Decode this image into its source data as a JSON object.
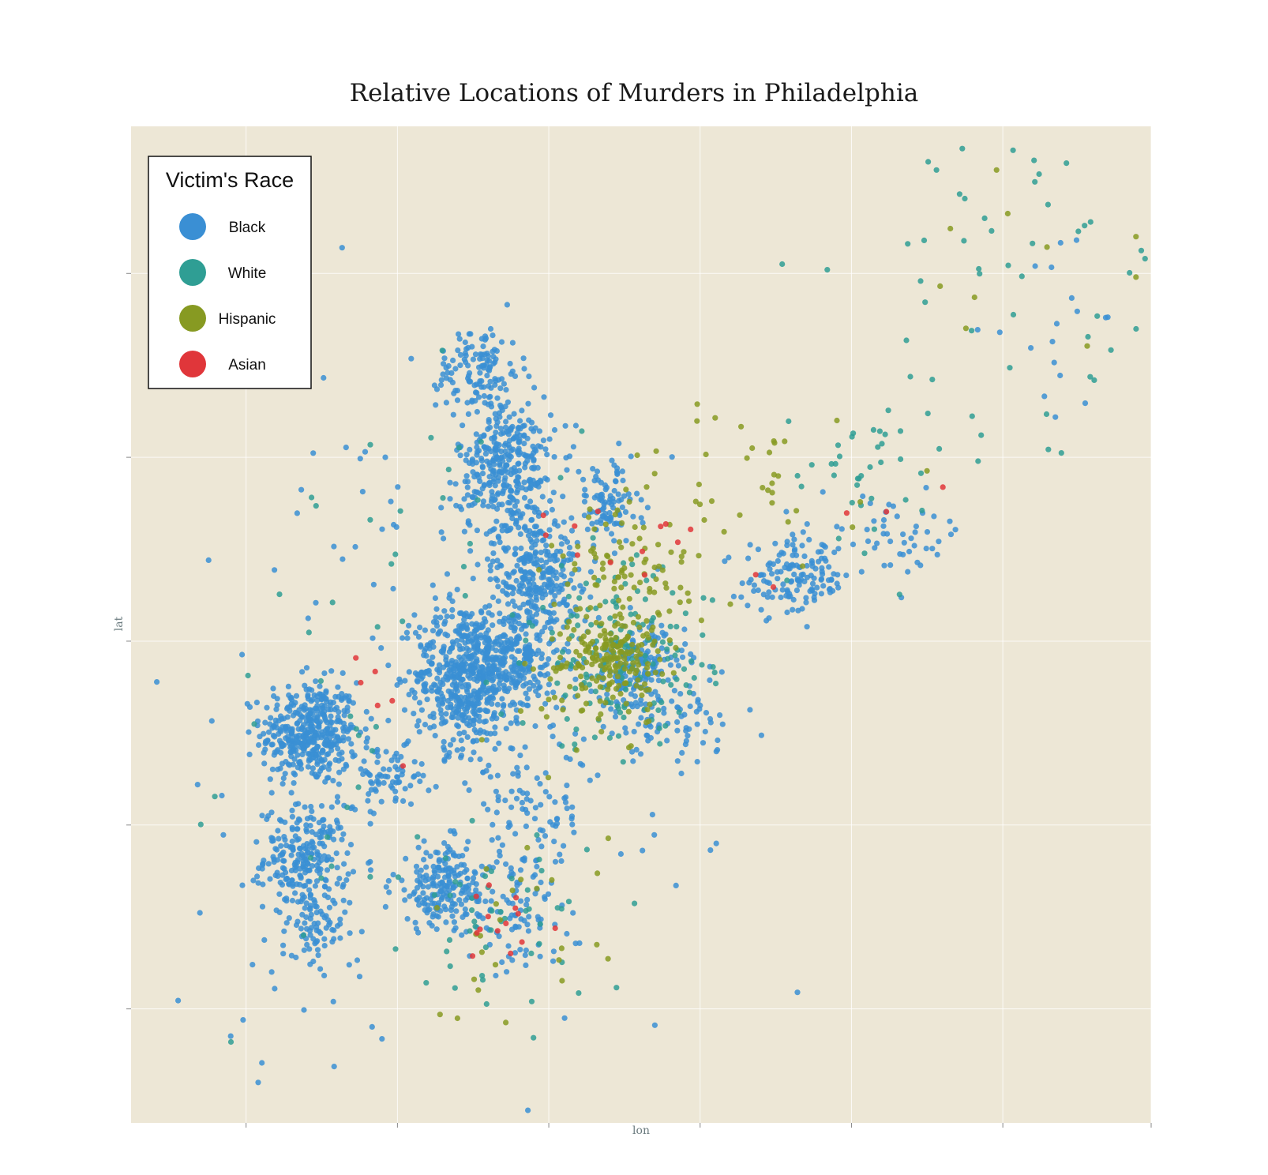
{
  "chart_data": {
    "type": "scatter",
    "title": "Relative Locations of Murders in Philadelphia",
    "xlabel": "lon",
    "ylabel": "lat",
    "grid": true,
    "tick_labels_shown": false,
    "xlim": [
      -75.292,
      -74.955
    ],
    "ylim": [
      39.862,
      40.133
    ],
    "xticks": [
      -75.254,
      -75.204,
      -75.154,
      -75.104,
      -75.054,
      -75.004,
      -74.955
    ],
    "yticks": [
      39.893,
      39.943,
      39.993,
      40.043,
      40.093
    ],
    "legend": {
      "title": "Victim's Race",
      "position": "top-left",
      "entries": [
        {
          "name": "Black",
          "color": "#3a8fd4"
        },
        {
          "name": "White",
          "color": "#2f9e94"
        },
        {
          "name": "Hispanic",
          "color": "#879a22"
        },
        {
          "name": "Asian",
          "color": "#e0363a"
        }
      ]
    },
    "clusters": [
      {
        "name": "Black",
        "lon": -75.233,
        "lat": 39.968,
        "sd_lon": 0.008,
        "sd_lat": 0.007,
        "count": 420
      },
      {
        "name": "Black",
        "lon": -75.234,
        "lat": 39.934,
        "sd_lon": 0.007,
        "sd_lat": 0.007,
        "count": 240
      },
      {
        "name": "Black",
        "lon": -75.232,
        "lat": 39.913,
        "sd_lon": 0.005,
        "sd_lat": 0.006,
        "count": 60
      },
      {
        "name": "Black",
        "lon": -75.207,
        "lat": 39.956,
        "sd_lon": 0.007,
        "sd_lat": 0.004,
        "count": 70
      },
      {
        "name": "Black",
        "lon": -75.182,
        "lat": 39.984,
        "sd_lon": 0.008,
        "sd_lat": 0.01,
        "count": 520
      },
      {
        "name": "Black",
        "lon": -75.165,
        "lat": 39.988,
        "sd_lon": 0.007,
        "sd_lat": 0.008,
        "count": 260
      },
      {
        "name": "Black",
        "lon": -75.158,
        "lat": 40.012,
        "sd_lon": 0.007,
        "sd_lat": 0.008,
        "count": 260
      },
      {
        "name": "Black",
        "lon": -75.168,
        "lat": 40.04,
        "sd_lon": 0.008,
        "sd_lat": 0.01,
        "count": 360
      },
      {
        "name": "Black",
        "lon": -75.177,
        "lat": 40.067,
        "sd_lon": 0.007,
        "sd_lat": 0.006,
        "count": 120
      },
      {
        "name": "Black",
        "lon": -75.135,
        "lat": 40.03,
        "sd_lon": 0.006,
        "sd_lat": 0.006,
        "count": 100
      },
      {
        "name": "Black",
        "lon": -75.125,
        "lat": 39.985,
        "sd_lon": 0.008,
        "sd_lat": 0.006,
        "count": 180
      },
      {
        "name": "Black",
        "lon": -75.188,
        "lat": 39.926,
        "sd_lon": 0.009,
        "sd_lat": 0.006,
        "count": 210
      },
      {
        "name": "Black",
        "lon": -75.165,
        "lat": 39.918,
        "sd_lon": 0.008,
        "sd_lat": 0.006,
        "count": 70
      },
      {
        "name": "Black",
        "lon": -75.16,
        "lat": 39.945,
        "sd_lon": 0.009,
        "sd_lat": 0.01,
        "count": 80
      },
      {
        "name": "Black",
        "lon": -75.072,
        "lat": 40.01,
        "sd_lon": 0.009,
        "sd_lat": 0.005,
        "count": 140
      },
      {
        "name": "Black",
        "lon": -75.04,
        "lat": 40.022,
        "sd_lon": 0.012,
        "sd_lat": 0.005,
        "count": 50
      },
      {
        "name": "Black",
        "lon": -74.985,
        "lat": 40.08,
        "sd_lon": 0.012,
        "sd_lat": 0.015,
        "count": 16
      },
      {
        "name": "Black",
        "lon": -75.115,
        "lat": 39.97,
        "sd_lon": 0.012,
        "sd_lat": 0.005,
        "count": 60
      },
      {
        "name": "Black",
        "lon": -75.2,
        "lat": 40.01,
        "sd_lon": 0.025,
        "sd_lat": 0.03,
        "count": 60
      },
      {
        "name": "Black",
        "lon": -75.235,
        "lat": 39.905,
        "sd_lon": 0.015,
        "sd_lat": 0.012,
        "count": 25
      },
      {
        "name": "Black",
        "lon": -75.15,
        "lat": 39.96,
        "sd_lon": 0.03,
        "sd_lat": 0.03,
        "count": 80
      },
      {
        "name": "Hispanic",
        "lon": -75.133,
        "lat": 39.99,
        "sd_lon": 0.008,
        "sd_lat": 0.005,
        "count": 150
      },
      {
        "name": "Hispanic",
        "lon": -75.128,
        "lat": 40.01,
        "sd_lon": 0.012,
        "sd_lat": 0.01,
        "count": 90
      },
      {
        "name": "Hispanic",
        "lon": -75.14,
        "lat": 39.978,
        "sd_lon": 0.01,
        "sd_lat": 0.008,
        "count": 50
      },
      {
        "name": "Hispanic",
        "lon": -75.09,
        "lat": 40.035,
        "sd_lon": 0.02,
        "sd_lat": 0.012,
        "count": 40
      },
      {
        "name": "Hispanic",
        "lon": -75.165,
        "lat": 39.915,
        "sd_lon": 0.015,
        "sd_lat": 0.015,
        "count": 25
      },
      {
        "name": "Hispanic",
        "lon": -75.0,
        "lat": 40.09,
        "sd_lon": 0.02,
        "sd_lat": 0.015,
        "count": 8
      },
      {
        "name": "White",
        "lon": -75.13,
        "lat": 39.988,
        "sd_lon": 0.015,
        "sd_lat": 0.012,
        "count": 150
      },
      {
        "name": "White",
        "lon": -75.17,
        "lat": 39.915,
        "sd_lon": 0.015,
        "sd_lat": 0.012,
        "count": 50
      },
      {
        "name": "White",
        "lon": -75.05,
        "lat": 40.04,
        "sd_lon": 0.02,
        "sd_lat": 0.012,
        "count": 40
      },
      {
        "name": "White",
        "lon": -75.0,
        "lat": 40.09,
        "sd_lon": 0.025,
        "sd_lat": 0.022,
        "count": 40
      },
      {
        "name": "White",
        "lon": -75.23,
        "lat": 39.96,
        "sd_lon": 0.015,
        "sd_lat": 0.025,
        "count": 20
      },
      {
        "name": "White",
        "lon": -75.19,
        "lat": 40.03,
        "sd_lon": 0.03,
        "sd_lat": 0.03,
        "count": 25
      },
      {
        "name": "Asian",
        "lon": -75.168,
        "lat": 39.915,
        "sd_lon": 0.008,
        "sd_lat": 0.008,
        "count": 14
      },
      {
        "name": "Asian",
        "lon": -75.13,
        "lat": 40.02,
        "sd_lon": 0.015,
        "sd_lat": 0.01,
        "count": 12
      },
      {
        "name": "Asian",
        "lon": -75.21,
        "lat": 39.96,
        "sd_lon": 0.02,
        "sd_lat": 0.015,
        "count": 6
      },
      {
        "name": "Asian",
        "lon": -75.06,
        "lat": 40.03,
        "sd_lon": 0.015,
        "sd_lat": 0.01,
        "count": 5
      }
    ],
    "points": [
      {
        "name": "White",
        "lon": -74.992,
        "lat": 40.12
      },
      {
        "name": "White",
        "lon": -74.983,
        "lat": 40.123
      },
      {
        "name": "White",
        "lon": -74.975,
        "lat": 40.107
      },
      {
        "name": "White",
        "lon": -74.977,
        "lat": 40.106
      },
      {
        "name": "White",
        "lon": -74.957,
        "lat": 40.097
      },
      {
        "name": "Hispanic",
        "lon": -74.96,
        "lat": 40.092
      },
      {
        "name": "Hispanic",
        "lon": -74.96,
        "lat": 40.103
      },
      {
        "name": "White",
        "lon": -75.01,
        "lat": 40.108
      },
      {
        "name": "Black",
        "lon": -75.005,
        "lat": 40.077
      },
      {
        "name": "Black",
        "lon": -74.97,
        "lat": 40.081
      },
      {
        "name": "White",
        "lon": -75.062,
        "lat": 40.094
      },
      {
        "name": "White",
        "lon": -75.03,
        "lat": 40.102
      },
      {
        "name": "Black",
        "lon": -75.27,
        "lat": 39.954
      },
      {
        "name": "Black",
        "lon": -75.262,
        "lat": 39.951
      },
      {
        "name": "Black",
        "lon": -75.255,
        "lat": 39.89
      },
      {
        "name": "Black",
        "lon": -75.25,
        "lat": 39.873
      },
      {
        "name": "White",
        "lon": -75.259,
        "lat": 39.884
      },
      {
        "name": "White",
        "lon": -75.235,
        "lat": 39.913
      },
      {
        "name": "Black",
        "lon": -75.22,
        "lat": 39.978
      },
      {
        "name": "White",
        "lon": -75.213,
        "lat": 40.026
      },
      {
        "name": "White",
        "lon": -75.206,
        "lat": 40.014
      },
      {
        "name": "Black",
        "lon": -75.208,
        "lat": 40.043
      }
    ]
  }
}
